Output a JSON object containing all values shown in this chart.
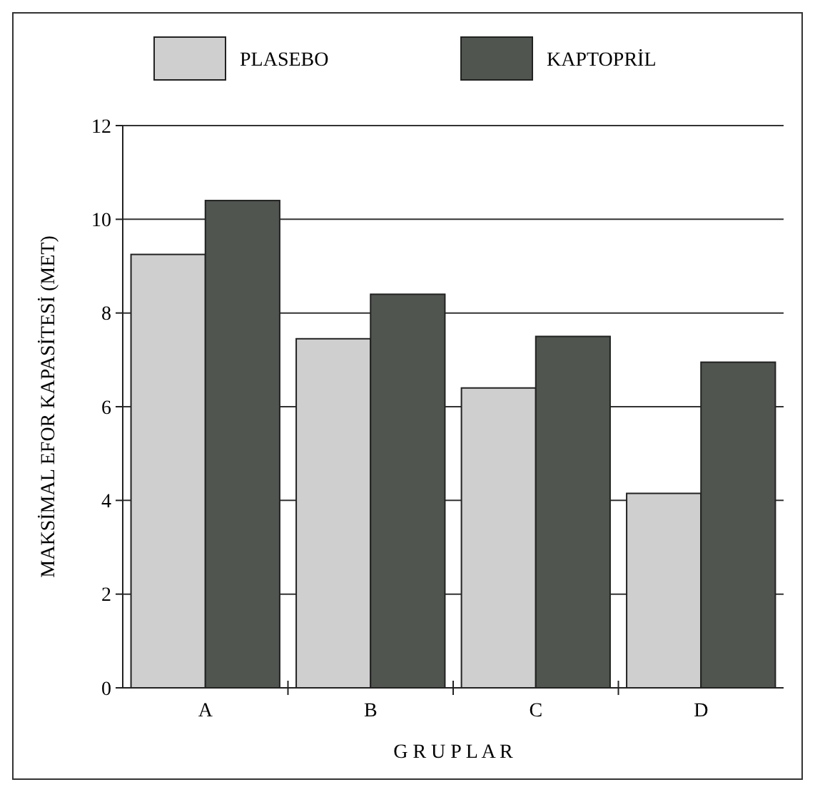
{
  "chart_data": {
    "type": "bar",
    "xlabel": "G R U P L A R",
    "ylabel": "MAKSİMAL EFOR KAPASİTESİ (MET)",
    "categories": [
      "A",
      "B",
      "C",
      "D"
    ],
    "series": [
      {
        "name": "PLASEBO",
        "color": "#cfcfcf",
        "values": [
          9.25,
          7.45,
          6.4,
          4.15
        ]
      },
      {
        "name": "KAPTOPRİL",
        "color": "#505550",
        "values": [
          10.4,
          8.4,
          7.5,
          6.95
        ]
      }
    ],
    "ylim": [
      0,
      12
    ],
    "yticks": [
      0,
      2,
      4,
      6,
      8,
      10,
      12
    ],
    "grid": "y",
    "legend": "top"
  }
}
